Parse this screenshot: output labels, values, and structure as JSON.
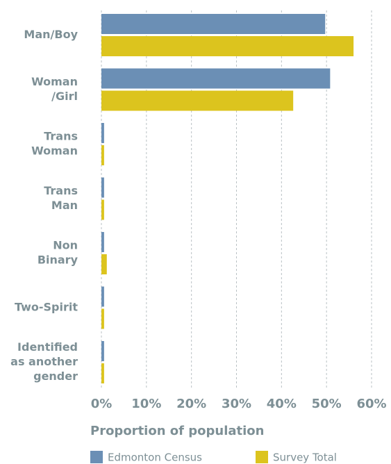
{
  "chart_data": {
    "type": "hbar",
    "x_label": "Proportion of population",
    "categories": [
      [
        "Man/Boy"
      ],
      [
        "Woman",
        "/Girl"
      ],
      [
        "Trans",
        "Woman"
      ],
      [
        "Trans",
        "Man"
      ],
      [
        "Non",
        "Binary"
      ],
      [
        "Two-Spirit"
      ],
      [
        "Identified",
        "as another",
        "gender"
      ]
    ],
    "series": [
      {
        "name": "Edmonton Census",
        "color": "#6b8fb5",
        "values": [
          49.7,
          50.8,
          0.6,
          0.6,
          0.6,
          0.6,
          0.6
        ]
      },
      {
        "name": "Survey Total",
        "color": "#dcc41e",
        "values": [
          56.0,
          42.6,
          0.6,
          0.6,
          1.2,
          0.6,
          0.6
        ]
      }
    ],
    "xlim": [
      0,
      60
    ],
    "xticks": [
      {
        "value": 0,
        "label": "0%"
      },
      {
        "value": 10,
        "label": "10%"
      },
      {
        "value": 20,
        "label": "20%"
      },
      {
        "value": 30,
        "label": "30%"
      },
      {
        "value": 40,
        "label": "40%"
      },
      {
        "value": 50,
        "label": "50%"
      },
      {
        "value": 60,
        "label": "60%"
      }
    ],
    "grid": true
  }
}
